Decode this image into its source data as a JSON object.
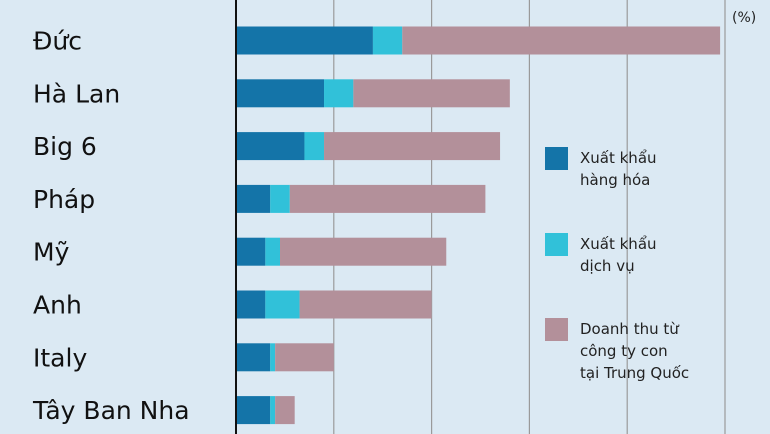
{
  "chart_data": {
    "type": "bar",
    "orientation": "horizontal",
    "stacked": true,
    "unit_label": "(%)",
    "xlim": [
      0,
      10
    ],
    "xticks": [
      0,
      2,
      4,
      6,
      8,
      10
    ],
    "grid": true,
    "legend_position": "right",
    "categories": [
      "Đức",
      "Hà Lan",
      "Big 6",
      "Pháp",
      "Mỹ",
      "Anh",
      "Italy",
      "Tây Ban Nha"
    ],
    "series": [
      {
        "name": "Xuất khẩu hàng hóa",
        "color": "#1474a8",
        "values": [
          2.8,
          1.8,
          1.4,
          0.7,
          0.6,
          0.6,
          0.7,
          0.7
        ]
      },
      {
        "name": "Xuất khẩu dịch vụ",
        "color": "#31c1d9",
        "values": [
          0.6,
          0.6,
          0.4,
          0.4,
          0.3,
          0.7,
          0.1,
          0.1
        ]
      },
      {
        "name": "Doanh thu từ công ty con tại Trung Quốc",
        "color": "#b3909a",
        "values": [
          6.5,
          3.2,
          3.6,
          4.0,
          3.4,
          2.7,
          1.2,
          0.4
        ]
      }
    ],
    "legend_lines": [
      [
        "Xuất khẩu",
        "hàng hóa"
      ],
      [
        "Xuất khẩu",
        "dịch vụ"
      ],
      [
        "Doanh thu từ",
        "công ty con",
        "tại Trung Quốc"
      ]
    ]
  }
}
